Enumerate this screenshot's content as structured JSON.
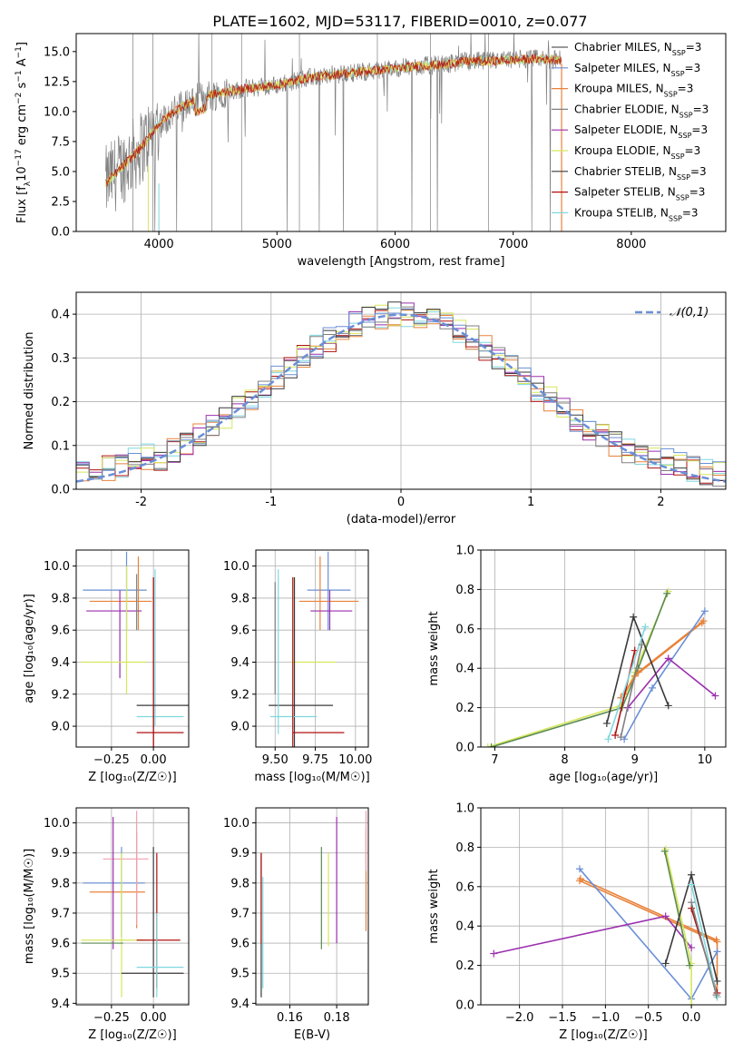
{
  "chart_data": [
    {
      "id": "spectrum",
      "type": "line",
      "title": "PLATE=1602, MJD=53117, FIBERID=0010, z=0.077",
      "xlabel": "wavelength [Angstrom, rest frame]",
      "ylabel_parts": [
        "Flux [f",
        "λ",
        "10",
        "−17",
        " erg cm",
        "−2",
        " s",
        "−1",
        " A",
        "−1",
        "]"
      ],
      "xlim": [
        3300,
        8800
      ],
      "ylim": [
        0,
        16.5
      ],
      "xticks": [
        4000,
        5000,
        6000,
        7000,
        8000
      ],
      "yticks": [
        0.0,
        2.5,
        5.0,
        7.5,
        10.0,
        12.5,
        15.0
      ],
      "grid": false,
      "legend_position": "right",
      "observed_continuum": {
        "x": [
          3550,
          3700,
          3850,
          4000,
          4200,
          4400,
          4600,
          4800,
          5000,
          5200,
          5400,
          5600,
          5800,
          6000,
          6200,
          6400,
          6600,
          6800,
          7000,
          7200,
          7400
        ],
        "y": [
          4.0,
          5.5,
          7.0,
          9.0,
          10.5,
          11.3,
          11.7,
          12.0,
          12.2,
          12.7,
          13.0,
          13.2,
          13.4,
          13.6,
          13.8,
          13.9,
          14.2,
          14.2,
          14.3,
          14.4,
          14.3
        ]
      },
      "observed_extent_x": [
        3550,
        7400
      ],
      "model_extent_x": [
        3550,
        7410
      ],
      "series": [
        {
          "name": "Chabrier MILES, N",
          "sub": "SSP",
          "tail": "=3",
          "color": "#5e5e5e"
        },
        {
          "name": "Salpeter MILES, N",
          "sub": "SSP",
          "tail": "=3",
          "color": "#6a8fd6"
        },
        {
          "name": "Kroupa MILES, N",
          "sub": "SSP",
          "tail": "=3",
          "color": "#e8823a"
        },
        {
          "name": "Chabrier ELODIE, N",
          "sub": "SSP",
          "tail": "=3",
          "color": "#808080"
        },
        {
          "name": "Salpeter ELODIE, N",
          "sub": "SSP",
          "tail": "=3",
          "color": "#9b2fae"
        },
        {
          "name": "Kroupa ELODIE, N",
          "sub": "SSP",
          "tail": "=3",
          "color": "#d6e65c"
        },
        {
          "name": "Chabrier STELIB, N",
          "sub": "SSP",
          "tail": "=3",
          "color": "#3a3a3a"
        },
        {
          "name": "Salpeter STELIB, N",
          "sub": "SSP",
          "tail": "=3",
          "color": "#b01010"
        },
        {
          "name": "Kroupa STELIB, N",
          "sub": "SSP",
          "tail": "=3",
          "color": "#7fd8df"
        }
      ]
    },
    {
      "id": "residuals",
      "type": "line",
      "xlabel": "(data-model)/error",
      "ylabel": "Normed distribution",
      "xlim": [
        -2.5,
        2.5
      ],
      "ylim": [
        0,
        0.45
      ],
      "xticks": [
        -2,
        -1,
        0,
        1,
        2
      ],
      "yticks": [
        0.0,
        0.1,
        0.2,
        0.3,
        0.4
      ],
      "grid": true,
      "legend_position": "top-right",
      "legend_label": "𝒩(0,1)",
      "gauss_color": "#6a8fd6",
      "bin_width": 0.1
    },
    {
      "id": "age-vs-Z",
      "type": "scatter",
      "xlabel": "Z [log₁₀(Z/Z☉)]",
      "ylabel": "age  [log₁₀(age/yr)]",
      "xlim": [
        -0.46,
        0.21
      ],
      "ylim": [
        8.87,
        10.1
      ],
      "xticks": [
        -0.25,
        0.0
      ],
      "xticklabels": [
        "−0.25",
        "0.00"
      ],
      "yticks": [
        9.0,
        9.2,
        9.4,
        9.6,
        9.8,
        10.0
      ],
      "grid": true,
      "lines": [
        {
          "color": "#6a8fd6",
          "o": "h",
          "v": 9.85,
          "a": -0.42,
          "b": -0.04
        },
        {
          "color": "#6a8fd6",
          "o": "v",
          "v": -0.16,
          "a": 9.6,
          "b": 10.09
        },
        {
          "color": "#e8823a",
          "o": "h",
          "v": 9.78,
          "a": -0.38,
          "b": -0.01
        },
        {
          "color": "#e8823a",
          "o": "v",
          "v": -0.09,
          "a": 9.6,
          "b": 10.06
        },
        {
          "color": "#9b2fae",
          "o": "h",
          "v": 9.72,
          "a": -0.4,
          "b": -0.07
        },
        {
          "color": "#9b2fae",
          "o": "v",
          "v": -0.2,
          "a": 9.3,
          "b": 9.85
        },
        {
          "color": "#d6e65c",
          "o": "h",
          "v": 9.4,
          "a": -0.43,
          "b": -0.04
        },
        {
          "color": "#d6e65c",
          "o": "v",
          "v": -0.16,
          "a": 9.2,
          "b": 10.0
        },
        {
          "color": "#808080",
          "o": "v",
          "v": -0.1,
          "a": 9.6,
          "b": 9.95
        },
        {
          "color": "#7fd8df",
          "o": "h",
          "v": 9.06,
          "a": -0.1,
          "b": 0.18
        },
        {
          "color": "#7fd8df",
          "o": "v",
          "v": 0.01,
          "a": 9.0,
          "b": 9.98
        },
        {
          "color": "#3a3a3a",
          "o": "h",
          "v": 9.13,
          "a": -0.1,
          "b": 0.21
        },
        {
          "color": "#3a3a3a",
          "o": "v",
          "v": 0.0,
          "a": 8.87,
          "b": 9.93
        },
        {
          "color": "#b01010",
          "o": "h",
          "v": 8.96,
          "a": -0.1,
          "b": 0.18
        },
        {
          "color": "#b01010",
          "o": "v",
          "v": 0.0,
          "a": 8.87,
          "b": 9.93
        }
      ]
    },
    {
      "id": "age-vs-mass",
      "type": "scatter",
      "xlabel": "mass [log₁₀(M/M☉)]",
      "xlim": [
        9.38,
        10.08
      ],
      "ylim": [
        8.87,
        10.1
      ],
      "xticks": [
        9.5,
        9.75,
        10.0
      ],
      "xticklabels": [
        "9.50",
        "9.75",
        "10.00"
      ],
      "yticks": [
        9.0,
        9.2,
        9.4,
        9.6,
        9.8,
        10.0
      ],
      "grid": true,
      "lines": [
        {
          "color": "#6a8fd6",
          "o": "h",
          "v": 9.85,
          "a": 9.7,
          "b": 9.97
        },
        {
          "color": "#6a8fd6",
          "o": "v",
          "v": 9.83,
          "a": 9.6,
          "b": 10.09
        },
        {
          "color": "#e8823a",
          "o": "h",
          "v": 9.78,
          "a": 9.65,
          "b": 10.02
        },
        {
          "color": "#e8823a",
          "o": "v",
          "v": 9.78,
          "a": 9.6,
          "b": 10.06
        },
        {
          "color": "#9b2fae",
          "o": "h",
          "v": 9.72,
          "a": 9.72,
          "b": 9.98
        },
        {
          "color": "#9b2fae",
          "o": "v",
          "v": 9.84,
          "a": 9.6,
          "b": 9.85
        },
        {
          "color": "#d6e65c",
          "o": "h",
          "v": 9.4,
          "a": 9.6,
          "b": 9.88
        },
        {
          "color": "#d6e65c",
          "o": "v",
          "v": 9.62,
          "a": 9.2,
          "b": 9.93
        },
        {
          "color": "#3a3a3a",
          "o": "h",
          "v": 9.13,
          "a": 9.46,
          "b": 9.86
        },
        {
          "color": "#3a3a3a",
          "o": "v",
          "v": 9.62,
          "a": 8.87,
          "b": 9.93
        },
        {
          "color": "#7fd8df",
          "o": "h",
          "v": 9.06,
          "a": 9.47,
          "b": 9.76
        },
        {
          "color": "#7fd8df",
          "o": "v",
          "v": 9.52,
          "a": 8.95,
          "b": 9.98
        },
        {
          "color": "#b01010",
          "o": "h",
          "v": 8.96,
          "a": 9.61,
          "b": 9.93
        },
        {
          "color": "#b01010",
          "o": "v",
          "v": 9.61,
          "a": 8.87,
          "b": 9.93
        },
        {
          "color": "#808080",
          "o": "v",
          "v": 9.5,
          "a": 9.2,
          "b": 9.9
        }
      ]
    },
    {
      "id": "mass-vs-Z",
      "type": "scatter",
      "xlabel": "Z [log₁₀(Z/Z☉)]",
      "ylabel": "mass [log₁₀(M/M☉)]",
      "xlim": [
        -0.46,
        0.21
      ],
      "ylim": [
        9.395,
        10.05
      ],
      "xticks": [
        -0.25,
        0.0
      ],
      "xticklabels": [
        "−0.25",
        "0.00"
      ],
      "yticks": [
        9.4,
        9.5,
        9.6,
        9.7,
        9.8,
        9.9,
        10.0
      ],
      "grid": true,
      "lines": [
        {
          "color": "#6a8fd6",
          "o": "h",
          "v": 9.8,
          "a": -0.42,
          "b": -0.05
        },
        {
          "color": "#6a8fd6",
          "o": "v",
          "v": -0.19,
          "a": 9.62,
          "b": 9.92
        },
        {
          "color": "#e8823a",
          "o": "h",
          "v": 9.77,
          "a": -0.38,
          "b": -0.05
        },
        {
          "color": "#e8823a",
          "o": "v",
          "v": -0.1,
          "a": 9.65,
          "b": 9.97
        },
        {
          "color": "#f0a0b0",
          "o": "h",
          "v": 9.88,
          "a": -0.3,
          "b": -0.03
        },
        {
          "color": "#f0a0b0",
          "o": "v",
          "v": -0.1,
          "a": 9.66,
          "b": 10.04
        },
        {
          "color": "#9b2fae",
          "o": "v",
          "v": -0.24,
          "a": 9.58,
          "b": 10.02
        },
        {
          "color": "#d6e65c",
          "o": "h",
          "v": 9.61,
          "a": -0.43,
          "b": -0.05
        },
        {
          "color": "#d6e65c",
          "o": "v",
          "v": -0.19,
          "a": 9.42,
          "b": 9.9
        },
        {
          "color": "#5a8a50",
          "o": "h",
          "v": 9.6,
          "a": -0.43,
          "b": -0.18
        },
        {
          "color": "#3a3a3a",
          "o": "h",
          "v": 9.5,
          "a": -0.19,
          "b": 0.18
        },
        {
          "color": "#3a3a3a",
          "o": "v",
          "v": 0.0,
          "a": 9.42,
          "b": 9.92
        },
        {
          "color": "#b01010",
          "o": "h",
          "v": 9.61,
          "a": -0.1,
          "b": 0.16
        },
        {
          "color": "#b01010",
          "o": "v",
          "v": 0.02,
          "a": 9.45,
          "b": 9.9
        },
        {
          "color": "#7fd8df",
          "o": "h",
          "v": 9.52,
          "a": -0.1,
          "b": 0.18
        },
        {
          "color": "#7fd8df",
          "o": "v",
          "v": 0.02,
          "a": 9.42,
          "b": 9.7
        }
      ]
    },
    {
      "id": "mass-vs-EBV",
      "type": "scatter",
      "xlabel": "E(B-V)",
      "xlim": [
        0.1455,
        0.1935
      ],
      "ylim": [
        9.395,
        10.05
      ],
      "xticks": [
        0.16,
        0.18
      ],
      "xticklabels": [
        "0.16",
        "0.18"
      ],
      "yticks": [
        9.4,
        9.5,
        9.6,
        9.7,
        9.8,
        9.9,
        10.0
      ],
      "grid": true,
      "lines": [
        {
          "color": "#3a3a3a",
          "o": "v",
          "v": 0.1478,
          "a": 9.42,
          "b": 9.9
        },
        {
          "color": "#b01010",
          "o": "v",
          "v": 0.1478,
          "a": 9.6,
          "b": 9.9
        },
        {
          "color": "#7fd8df",
          "o": "v",
          "v": 0.1485,
          "a": 9.45,
          "b": 9.82
        },
        {
          "color": "#5a8a50",
          "o": "v",
          "v": 0.1735,
          "a": 9.58,
          "b": 9.92
        },
        {
          "color": "#d6e65c",
          "o": "v",
          "v": 0.1765,
          "a": 9.59,
          "b": 9.9
        },
        {
          "color": "#9b2fae",
          "o": "v",
          "v": 0.18,
          "a": 9.6,
          "b": 10.02
        },
        {
          "color": "#e8823a",
          "o": "v",
          "v": 0.1925,
          "a": 9.64,
          "b": 9.98
        },
        {
          "color": "#f0a0b0",
          "o": "v",
          "v": 0.1925,
          "a": 9.84,
          "b": 10.04
        }
      ]
    },
    {
      "id": "weight-vs-age",
      "type": "line",
      "xlabel": "age  [log₁₀(age/yr)]",
      "ylabel": "mass weight",
      "xlim": [
        6.8,
        10.3
      ],
      "ylim": [
        0,
        1.0
      ],
      "xticks": [
        7,
        8,
        9,
        10
      ],
      "yticks": [
        0.0,
        0.2,
        0.4,
        0.6,
        0.8,
        1.0
      ],
      "grid": true,
      "series": [
        {
          "color": "#d6e65c",
          "x": [
            6.9,
            8.8,
            9.0,
            9.48
          ],
          "y": [
            0.0,
            0.21,
            0.38,
            0.79
          ]
        },
        {
          "color": "#5a8a50",
          "x": [
            6.95,
            8.82,
            9.05,
            9.46
          ],
          "y": [
            0.0,
            0.2,
            0.4,
            0.78
          ]
        },
        {
          "color": "#e8823a",
          "x": [
            8.85,
            9.0,
            9.96
          ],
          "y": [
            0.27,
            0.36,
            0.63
          ]
        },
        {
          "color": "#e8823a",
          "x": [
            8.8,
            9.05,
            9.98
          ],
          "y": [
            0.25,
            0.38,
            0.64
          ]
        },
        {
          "color": "#6a8fd6",
          "x": [
            8.85,
            9.25,
            10.0
          ],
          "y": [
            0.04,
            0.3,
            0.69
          ]
        },
        {
          "color": "#9b2fae",
          "x": [
            8.9,
            9.48,
            10.15
          ],
          "y": [
            0.2,
            0.45,
            0.26
          ]
        },
        {
          "color": "#3a3a3a",
          "x": [
            8.6,
            8.98,
            9.48
          ],
          "y": [
            0.12,
            0.66,
            0.21
          ]
        },
        {
          "color": "#b01010",
          "x": [
            8.72,
            9.0
          ],
          "y": [
            0.06,
            0.49
          ]
        },
        {
          "color": "#7fd8df",
          "x": [
            8.62,
            9.15
          ],
          "y": [
            0.04,
            0.61
          ]
        },
        {
          "color": "#808080",
          "x": [
            8.8,
            9.1
          ],
          "y": [
            0.05,
            0.52
          ]
        }
      ]
    },
    {
      "id": "weight-vs-Z",
      "type": "line",
      "xlabel": "Z [log₁₀(Z/Z☉)]",
      "ylabel": "mass weight",
      "xlim": [
        -2.45,
        0.4
      ],
      "ylim": [
        0,
        1.0
      ],
      "xticks": [
        -2.0,
        -1.5,
        -1.0,
        -0.5,
        0.0
      ],
      "xticklabels": [
        "−2.0",
        "−1.5",
        "−1.0",
        "−0.5",
        "0.0"
      ],
      "yticks": [
        0.0,
        0.2,
        0.4,
        0.6,
        0.8,
        1.0
      ],
      "grid": true,
      "series": [
        {
          "color": "#e8823a",
          "x": [
            -1.3,
            0.3,
            0.3
          ],
          "y": [
            0.63,
            0.32,
            0.04
          ]
        },
        {
          "color": "#e8823a",
          "x": [
            -1.29,
            0.29
          ],
          "y": [
            0.64,
            0.33
          ]
        },
        {
          "color": "#6a8fd6",
          "x": [
            -1.3,
            0.0,
            0.3
          ],
          "y": [
            0.69,
            0.03,
            0.27
          ]
        },
        {
          "color": "#9b2fae",
          "x": [
            -2.3,
            -0.3,
            0.0
          ],
          "y": [
            0.26,
            0.45,
            0.29
          ]
        },
        {
          "color": "#d6e65c",
          "x": [
            -0.3,
            0.0,
            0.0
          ],
          "y": [
            0.79,
            0.21,
            0.0
          ]
        },
        {
          "color": "#5a8a50",
          "x": [
            -0.31,
            -0.02
          ],
          "y": [
            0.78,
            0.2
          ]
        },
        {
          "color": "#3a3a3a",
          "x": [
            -0.3,
            0.0,
            0.3
          ],
          "y": [
            0.21,
            0.66,
            0.12
          ]
        },
        {
          "color": "#b01010",
          "x": [
            0.0,
            0.3
          ],
          "y": [
            0.49,
            0.06
          ]
        },
        {
          "color": "#7fd8df",
          "x": [
            0.0,
            0.3
          ],
          "y": [
            0.61,
            0.04
          ]
        },
        {
          "color": "#808080",
          "x": [
            0.0,
            0.29
          ],
          "y": [
            0.52,
            0.05
          ]
        }
      ]
    }
  ]
}
